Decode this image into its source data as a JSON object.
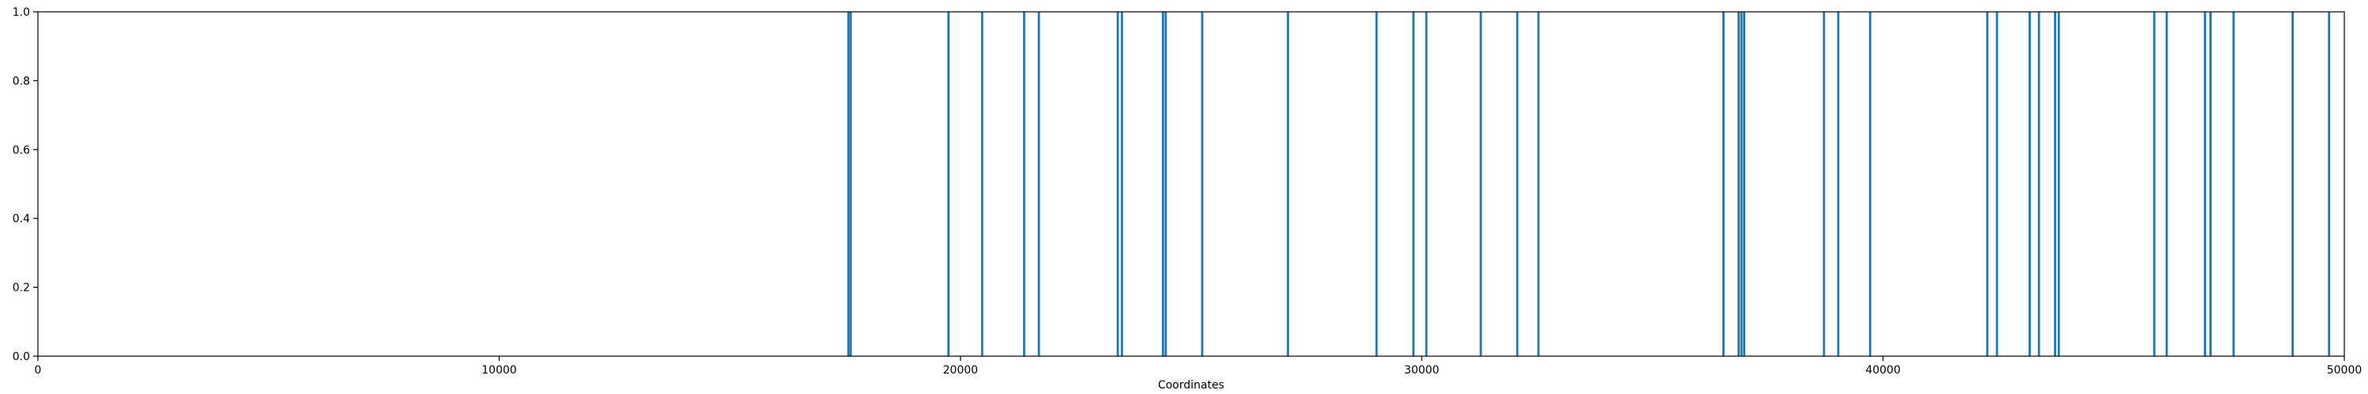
{
  "chart_data": {
    "type": "bar",
    "title": "",
    "xlabel": "Coordinates",
    "ylabel": "",
    "xlim": [
      0,
      50000
    ],
    "ylim": [
      0.0,
      1.0
    ],
    "grid": false,
    "legend": "none",
    "bar_color": "#1f77b4",
    "x_ticks": [
      0,
      10000,
      20000,
      30000,
      40000,
      50000
    ],
    "x_tick_labels": [
      "0",
      "10000",
      "20000",
      "30000",
      "40000",
      "50000"
    ],
    "y_ticks": [
      0.0,
      0.2,
      0.4,
      0.6,
      0.8,
      1.0
    ],
    "y_tick_labels": [
      "0.0",
      "0.2",
      "0.4",
      "0.6",
      "0.8",
      "1.0"
    ],
    "series": [
      {
        "values": [
          {
            "x": 17570,
            "y": 1
          },
          {
            "x": 17620,
            "y": 1
          },
          {
            "x": 19740,
            "y": 1
          },
          {
            "x": 20470,
            "y": 1
          },
          {
            "x": 21380,
            "y": 1
          },
          {
            "x": 21700,
            "y": 1
          },
          {
            "x": 23410,
            "y": 1
          },
          {
            "x": 23500,
            "y": 1
          },
          {
            "x": 24390,
            "y": 1
          },
          {
            "x": 24450,
            "y": 1
          },
          {
            "x": 25240,
            "y": 1
          },
          {
            "x": 27100,
            "y": 1
          },
          {
            "x": 29020,
            "y": 1
          },
          {
            "x": 29820,
            "y": 1
          },
          {
            "x": 30100,
            "y": 1
          },
          {
            "x": 31280,
            "y": 1
          },
          {
            "x": 32070,
            "y": 1
          },
          {
            "x": 32530,
            "y": 1
          },
          {
            "x": 36540,
            "y": 1
          },
          {
            "x": 36870,
            "y": 1
          },
          {
            "x": 36930,
            "y": 1
          },
          {
            "x": 36990,
            "y": 1
          },
          {
            "x": 38720,
            "y": 1
          },
          {
            "x": 39030,
            "y": 1
          },
          {
            "x": 39720,
            "y": 1
          },
          {
            "x": 42260,
            "y": 1
          },
          {
            "x": 42470,
            "y": 1
          },
          {
            "x": 43180,
            "y": 1
          },
          {
            "x": 43380,
            "y": 1
          },
          {
            "x": 43730,
            "y": 1
          },
          {
            "x": 43810,
            "y": 1
          },
          {
            "x": 45880,
            "y": 1
          },
          {
            "x": 46150,
            "y": 1
          },
          {
            "x": 46980,
            "y": 1
          },
          {
            "x": 47100,
            "y": 1
          },
          {
            "x": 47600,
            "y": 1
          },
          {
            "x": 48880,
            "y": 1
          },
          {
            "x": 49670,
            "y": 1
          }
        ]
      }
    ]
  }
}
